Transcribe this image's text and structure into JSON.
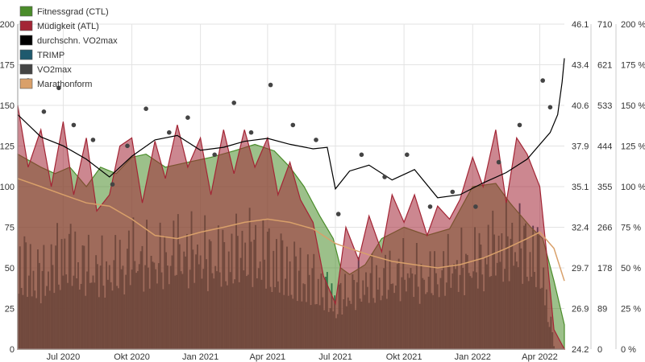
{
  "chart_data": {
    "type": "line",
    "title": "",
    "xlabel": "",
    "ylabel": "",
    "x_range": [
      "2020-05-01",
      "2022-05-04"
    ],
    "x_ticks": [
      {
        "date": "2020-07-01",
        "label": "Jul 2020"
      },
      {
        "date": "2020-10-01",
        "label": "Okt 2020"
      },
      {
        "date": "2021-01-01",
        "label": "Jan 2021"
      },
      {
        "date": "2021-04-01",
        "label": "Apr 2021"
      },
      {
        "date": "2021-07-01",
        "label": "Jul 2021"
      },
      {
        "date": "2021-10-01",
        "label": "Okt 2021"
      },
      {
        "date": "2022-01-01",
        "label": "Jan 2022"
      },
      {
        "date": "2022-04-01",
        "label": "Apr 2022"
      }
    ],
    "grid": true,
    "legend_position": "top-left",
    "axes": {
      "load": {
        "min": 0,
        "max": 200,
        "ticks": [
          "0",
          "25",
          "50",
          "75",
          "100",
          "125",
          "150",
          "175",
          "200"
        ]
      },
      "vo2max": {
        "min": 24.2,
        "max": 46.1,
        "ticks": [
          "24.2",
          "26.9",
          "29.7",
          "32.4",
          "35.1",
          "37.9",
          "40.6",
          "43.4",
          "46.1"
        ]
      },
      "trimp": {
        "min": 0,
        "max": 710,
        "ticks": [
          "0",
          "89",
          "178",
          "266",
          "355",
          "444",
          "533",
          "621",
          "710"
        ]
      },
      "marathon": {
        "min": 0,
        "max": 200,
        "unit": "%",
        "ticks": [
          "0 %",
          "25 %",
          "50 %",
          "75 %",
          "100 %",
          "125 %",
          "150 %",
          "175 %",
          "200 %"
        ]
      }
    },
    "series": [
      {
        "name": "Fitnessgrad (CTL)",
        "kind": "area",
        "axis": "load",
        "color": "#4a8c2a",
        "points": [
          [
            "2020-05-01",
            120
          ],
          [
            "2020-06-01",
            112
          ],
          [
            "2020-06-20",
            108
          ],
          [
            "2020-07-10",
            112
          ],
          [
            "2020-08-01",
            100
          ],
          [
            "2020-08-20",
            112
          ],
          [
            "2020-09-10",
            108
          ],
          [
            "2020-10-01",
            118
          ],
          [
            "2020-10-20",
            120
          ],
          [
            "2020-11-15",
            112
          ],
          [
            "2020-12-15",
            115
          ],
          [
            "2021-01-15",
            118
          ],
          [
            "2021-02-15",
            122
          ],
          [
            "2021-03-15",
            126
          ],
          [
            "2021-04-10",
            122
          ],
          [
            "2021-05-01",
            112
          ],
          [
            "2021-05-20",
            100
          ],
          [
            "2021-06-10",
            82
          ],
          [
            "2021-06-28",
            68
          ],
          [
            "2021-07-08",
            50
          ],
          [
            "2021-07-20",
            46
          ],
          [
            "2021-08-10",
            52
          ],
          [
            "2021-09-01",
            68
          ],
          [
            "2021-10-01",
            75
          ],
          [
            "2021-11-01",
            70
          ],
          [
            "2021-12-01",
            74
          ],
          [
            "2022-01-01",
            100
          ],
          [
            "2022-02-01",
            102
          ],
          [
            "2022-02-20",
            90
          ],
          [
            "2022-03-20",
            75
          ],
          [
            "2022-04-05",
            68
          ],
          [
            "2022-04-20",
            42
          ],
          [
            "2022-05-04",
            15
          ]
        ]
      },
      {
        "name": "Müdigkeit (ATL)",
        "kind": "area",
        "axis": "load",
        "color": "#a32535",
        "points": [
          [
            "2020-05-01",
            150
          ],
          [
            "2020-05-15",
            112
          ],
          [
            "2020-06-01",
            135
          ],
          [
            "2020-06-15",
            100
          ],
          [
            "2020-07-01",
            140
          ],
          [
            "2020-07-15",
            95
          ],
          [
            "2020-08-01",
            130
          ],
          [
            "2020-08-15",
            85
          ],
          [
            "2020-09-01",
            95
          ],
          [
            "2020-09-15",
            125
          ],
          [
            "2020-10-01",
            130
          ],
          [
            "2020-10-15",
            90
          ],
          [
            "2020-11-01",
            128
          ],
          [
            "2020-11-15",
            105
          ],
          [
            "2020-12-01",
            138
          ],
          [
            "2020-12-15",
            112
          ],
          [
            "2021-01-01",
            130
          ],
          [
            "2021-01-15",
            95
          ],
          [
            "2021-02-01",
            135
          ],
          [
            "2021-02-15",
            108
          ],
          [
            "2021-03-01",
            135
          ],
          [
            "2021-03-15",
            112
          ],
          [
            "2021-04-01",
            130
          ],
          [
            "2021-04-15",
            95
          ],
          [
            "2021-05-01",
            115
          ],
          [
            "2021-05-15",
            92
          ],
          [
            "2021-06-01",
            78
          ],
          [
            "2021-06-15",
            45
          ],
          [
            "2021-07-01",
            28
          ],
          [
            "2021-07-15",
            75
          ],
          [
            "2021-08-01",
            55
          ],
          [
            "2021-08-15",
            82
          ],
          [
            "2021-09-01",
            60
          ],
          [
            "2021-09-15",
            95
          ],
          [
            "2021-10-01",
            78
          ],
          [
            "2021-10-15",
            95
          ],
          [
            "2021-11-01",
            70
          ],
          [
            "2021-11-15",
            88
          ],
          [
            "2021-12-01",
            80
          ],
          [
            "2021-12-15",
            92
          ],
          [
            "2022-01-01",
            118
          ],
          [
            "2022-01-15",
            100
          ],
          [
            "2022-02-01",
            135
          ],
          [
            "2022-02-15",
            90
          ],
          [
            "2022-03-01",
            130
          ],
          [
            "2022-03-15",
            120
          ],
          [
            "2022-04-01",
            100
          ],
          [
            "2022-04-10",
            60
          ],
          [
            "2022-04-20",
            12
          ],
          [
            "2022-05-04",
            0
          ]
        ]
      },
      {
        "name": "durchschn. VO2max",
        "kind": "line",
        "axis": "vo2max",
        "color": "#000000",
        "points": [
          [
            "2020-05-01",
            40.0
          ],
          [
            "2020-06-01",
            38.5
          ],
          [
            "2020-07-01",
            37.9
          ],
          [
            "2020-08-01",
            37.0
          ],
          [
            "2020-09-01",
            35.8
          ],
          [
            "2020-10-01",
            37.2
          ],
          [
            "2020-11-01",
            38.3
          ],
          [
            "2020-12-01",
            38.6
          ],
          [
            "2021-01-01",
            37.6
          ],
          [
            "2021-02-01",
            37.8
          ],
          [
            "2021-03-01",
            38.2
          ],
          [
            "2021-04-01",
            38.4
          ],
          [
            "2021-05-01",
            38.0
          ],
          [
            "2021-06-01",
            37.7
          ],
          [
            "2021-06-20",
            37.8
          ],
          [
            "2021-07-01",
            35.0
          ],
          [
            "2021-07-20",
            36.2
          ],
          [
            "2021-08-15",
            36.6
          ],
          [
            "2021-09-15",
            35.6
          ],
          [
            "2021-10-15",
            36.3
          ],
          [
            "2021-11-15",
            34.4
          ],
          [
            "2021-12-15",
            34.6
          ],
          [
            "2022-01-15",
            35.4
          ],
          [
            "2022-02-15",
            36.1
          ],
          [
            "2022-03-15",
            37.0
          ],
          [
            "2022-04-15",
            38.8
          ],
          [
            "2022-04-25",
            40.0
          ],
          [
            "2022-05-01",
            42.2
          ],
          [
            "2022-05-04",
            43.8
          ]
        ]
      },
      {
        "name": "TRIMP",
        "kind": "bar",
        "axis": "trimp",
        "color": "#1f5a6e",
        "points": [
          [
            "2020-05-01",
            220
          ],
          [
            "2020-06-01",
            180
          ],
          [
            "2020-07-01",
            240
          ],
          [
            "2020-08-01",
            200
          ],
          [
            "2020-09-01",
            190
          ],
          [
            "2020-10-01",
            230
          ],
          [
            "2020-11-01",
            210
          ],
          [
            "2020-12-01",
            240
          ],
          [
            "2021-01-01",
            230
          ],
          [
            "2021-02-01",
            220
          ],
          [
            "2021-03-01",
            250
          ],
          [
            "2021-04-01",
            230
          ],
          [
            "2021-05-01",
            200
          ],
          [
            "2021-06-01",
            170
          ],
          [
            "2021-07-01",
            120
          ],
          [
            "2021-08-01",
            160
          ],
          [
            "2021-09-01",
            170
          ],
          [
            "2021-10-01",
            190
          ],
          [
            "2021-11-01",
            170
          ],
          [
            "2021-12-01",
            200
          ],
          [
            "2022-01-01",
            210
          ],
          [
            "2022-02-01",
            250
          ],
          [
            "2022-03-01",
            260
          ],
          [
            "2022-04-01",
            220
          ],
          [
            "2022-04-20",
            0
          ]
        ]
      },
      {
        "name": "VO2max",
        "kind": "scatter",
        "axis": "vo2max",
        "color": "#444444",
        "points": [
          [
            "2020-05-15",
            42.3
          ],
          [
            "2020-06-05",
            40.2
          ],
          [
            "2020-06-25",
            41.8
          ],
          [
            "2020-07-15",
            39.3
          ],
          [
            "2020-08-10",
            38.3
          ],
          [
            "2020-09-05",
            35.3
          ],
          [
            "2020-09-25",
            37.9
          ],
          [
            "2020-10-20",
            40.4
          ],
          [
            "2020-11-20",
            38.8
          ],
          [
            "2020-12-15",
            39.8
          ],
          [
            "2021-01-20",
            37.3
          ],
          [
            "2021-02-15",
            40.8
          ],
          [
            "2021-03-10",
            38.8
          ],
          [
            "2021-04-05",
            42.0
          ],
          [
            "2021-05-05",
            39.3
          ],
          [
            "2021-06-05",
            38.3
          ],
          [
            "2021-07-05",
            33.3
          ],
          [
            "2021-08-05",
            37.3
          ],
          [
            "2021-09-05",
            35.8
          ],
          [
            "2021-10-05",
            37.3
          ],
          [
            "2021-11-05",
            33.8
          ],
          [
            "2021-12-05",
            34.8
          ],
          [
            "2022-01-05",
            33.8
          ],
          [
            "2022-02-05",
            36.8
          ],
          [
            "2022-03-05",
            39.3
          ],
          [
            "2022-04-05",
            42.3
          ],
          [
            "2022-04-15",
            40.5
          ]
        ]
      },
      {
        "name": "Marathonform",
        "kind": "line",
        "axis": "marathon",
        "color": "#d9a06a",
        "points": [
          [
            "2020-05-01",
            105
          ],
          [
            "2020-06-01",
            100
          ],
          [
            "2020-07-01",
            95
          ],
          [
            "2020-08-01",
            90
          ],
          [
            "2020-09-01",
            88
          ],
          [
            "2020-10-01",
            80
          ],
          [
            "2020-11-01",
            70
          ],
          [
            "2020-12-01",
            68
          ],
          [
            "2021-01-01",
            72
          ],
          [
            "2021-02-01",
            75
          ],
          [
            "2021-03-01",
            78
          ],
          [
            "2021-04-01",
            80
          ],
          [
            "2021-05-01",
            78
          ],
          [
            "2021-06-01",
            74
          ],
          [
            "2021-07-01",
            65
          ],
          [
            "2021-07-20",
            62
          ],
          [
            "2021-08-15",
            58
          ],
          [
            "2021-09-15",
            54
          ],
          [
            "2021-10-15",
            52
          ],
          [
            "2021-11-15",
            50
          ],
          [
            "2021-12-15",
            52
          ],
          [
            "2022-01-15",
            56
          ],
          [
            "2022-02-15",
            62
          ],
          [
            "2022-03-15",
            68
          ],
          [
            "2022-04-01",
            72
          ],
          [
            "2022-04-20",
            62
          ],
          [
            "2022-05-04",
            42
          ]
        ]
      }
    ]
  }
}
